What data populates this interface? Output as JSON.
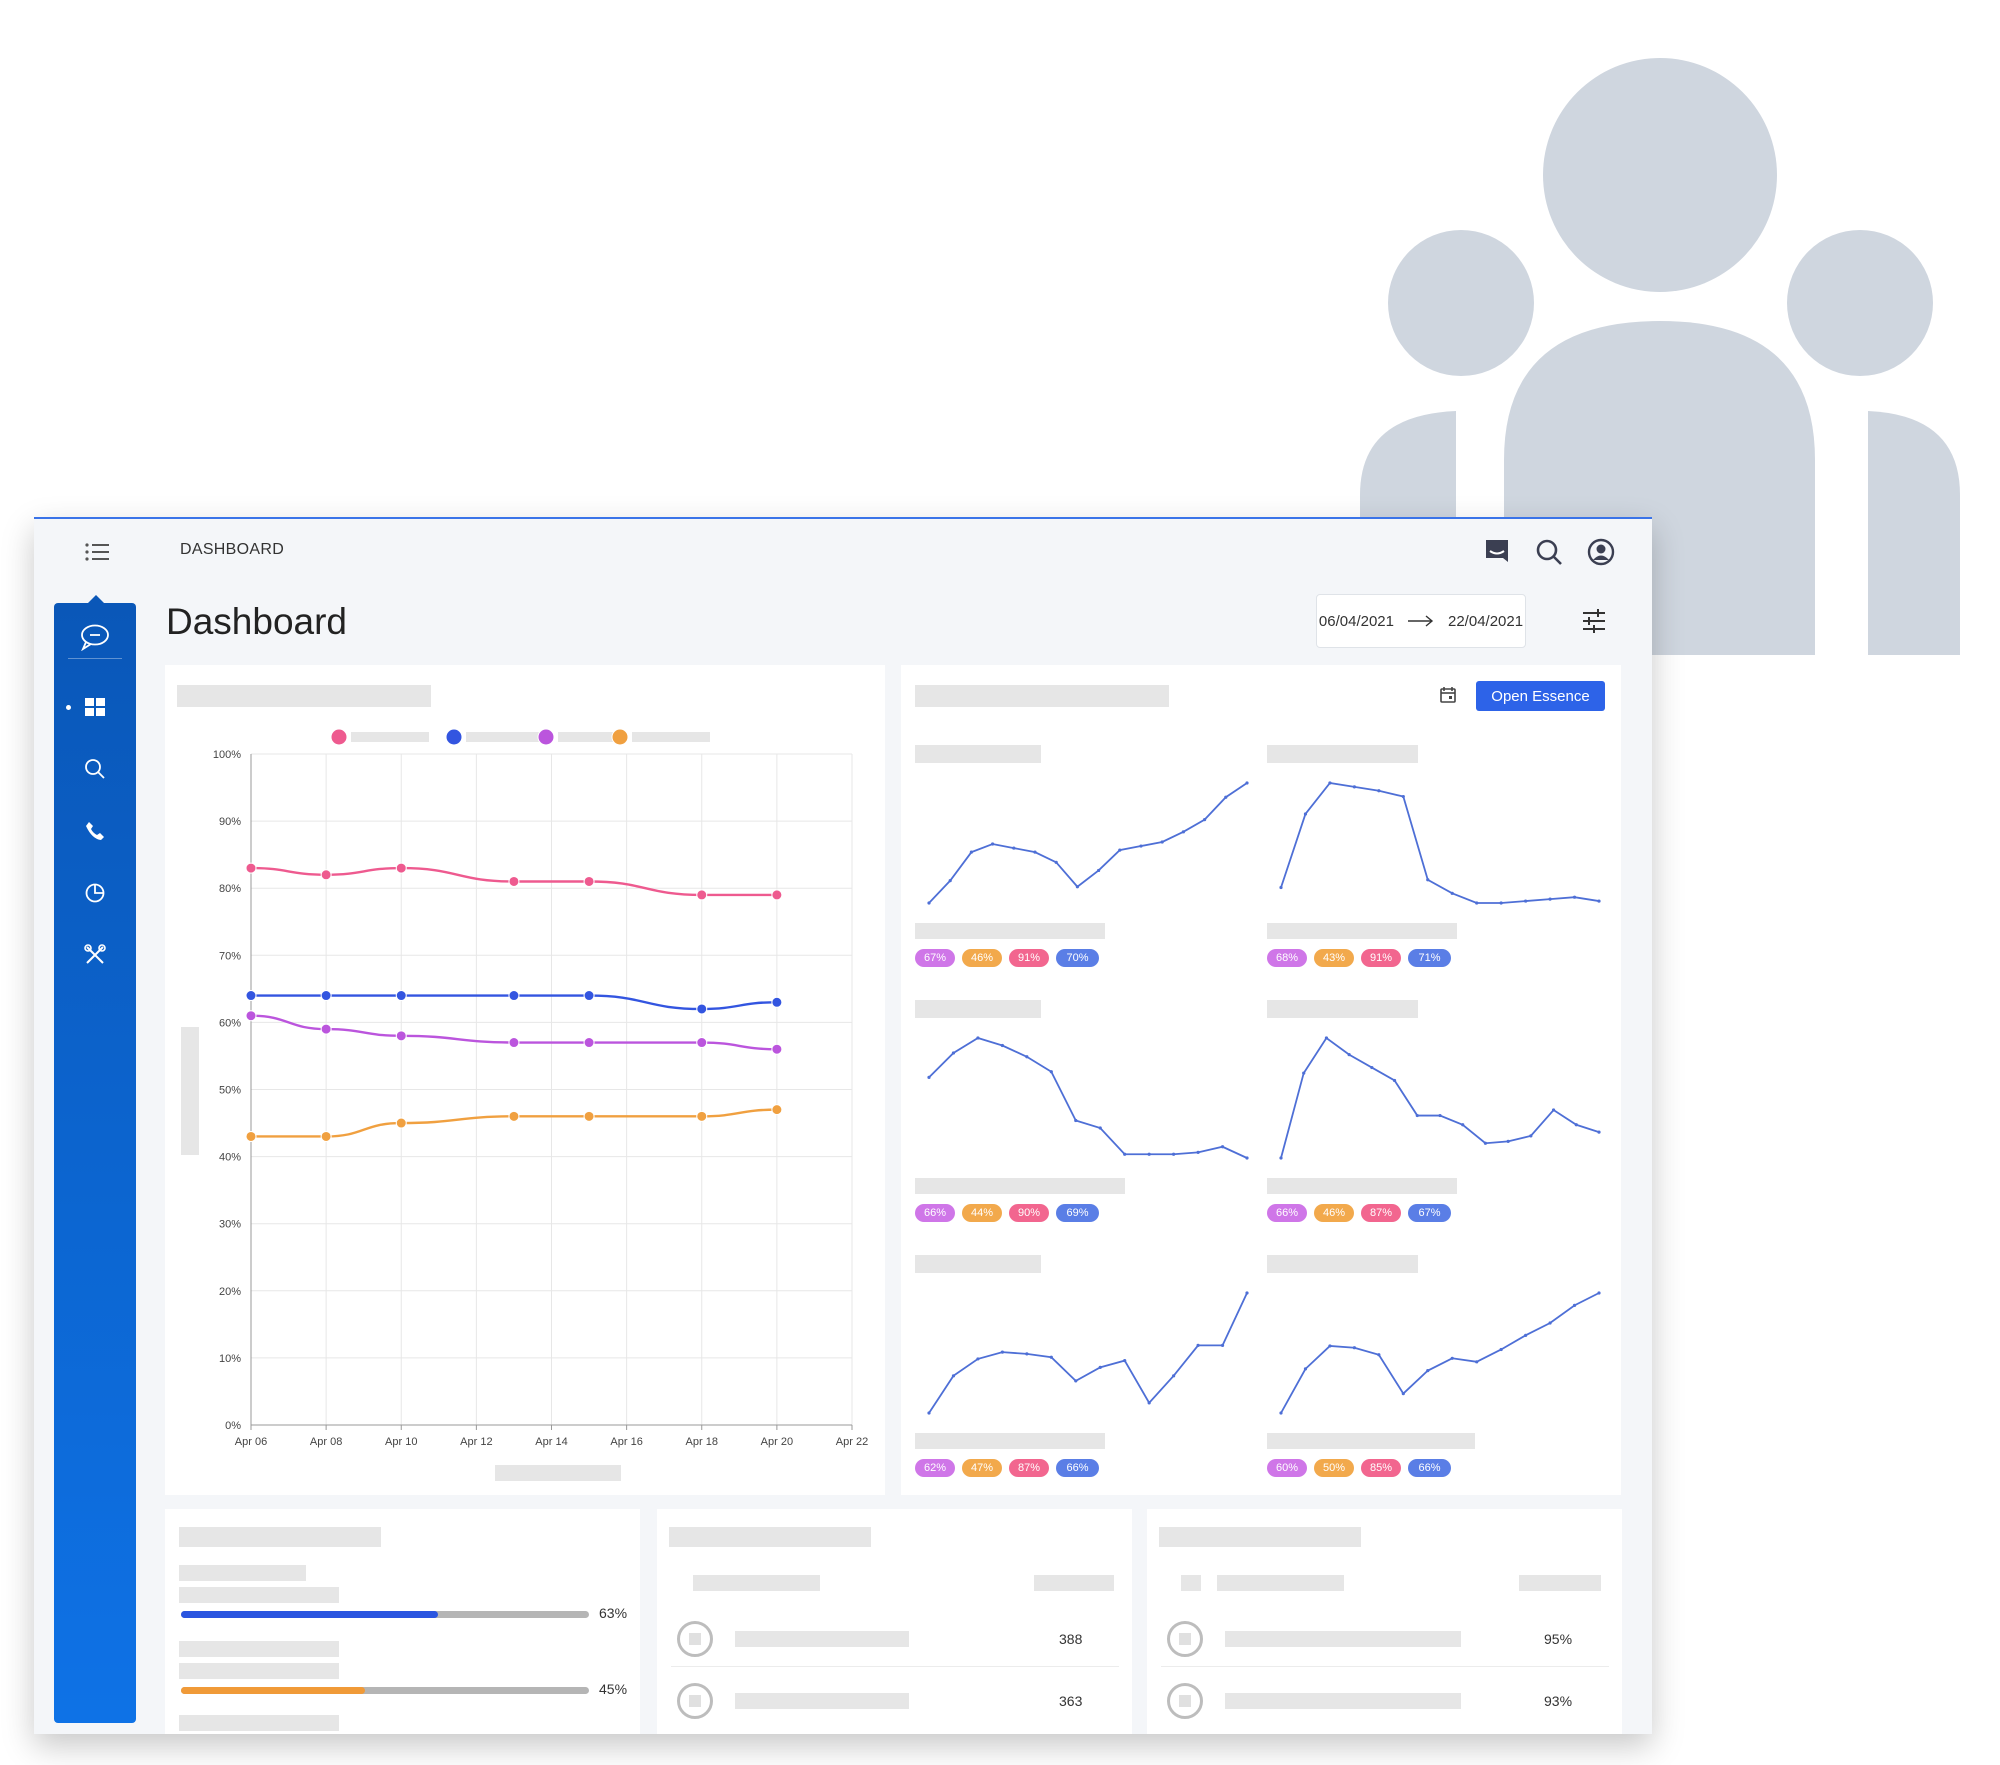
{
  "header": {
    "breadcrumb": "DASHBOARD",
    "page_title": "Dashboard",
    "date_from": "06/04/2021",
    "date_to": "22/04/2021"
  },
  "sidebar": {
    "items": [
      {
        "icon": "chat-icon"
      },
      {
        "icon": "dashboard-grid-icon",
        "active": true
      },
      {
        "icon": "search-icon"
      },
      {
        "icon": "phone-icon"
      },
      {
        "icon": "pie-chart-icon"
      },
      {
        "icon": "tools-icon"
      }
    ]
  },
  "top_icons": [
    "message-icon",
    "search-icon",
    "user-account-icon"
  ],
  "right_panel": {
    "button_label": "Open Essence",
    "sparklines": [
      {
        "badges": [
          "67%",
          "46%",
          "91%",
          "70%"
        ],
        "values": [
          3,
          14,
          28,
          32,
          30,
          28,
          23,
          11,
          19,
          29,
          31,
          33,
          38,
          44,
          55,
          62
        ]
      },
      {
        "badges": [
          "68%",
          "43%",
          "91%",
          "71%"
        ],
        "values": [
          8,
          46,
          62,
          60,
          58,
          55,
          12,
          5,
          0,
          0,
          1,
          2,
          3,
          1
        ]
      },
      {
        "badges": [
          "66%",
          "44%",
          "90%",
          "69%"
        ],
        "values": [
          45,
          58,
          66,
          62,
          56,
          48,
          22,
          18,
          4,
          4,
          4,
          5,
          8,
          2
        ]
      },
      {
        "badges": [
          "66%",
          "46%",
          "87%",
          "67%"
        ],
        "values": [
          2,
          48,
          67,
          58,
          51,
          44,
          25,
          25,
          20,
          10,
          11,
          14,
          28,
          20,
          16
        ]
      },
      {
        "badges": [
          "62%",
          "47%",
          "87%",
          "66%"
        ],
        "values": [
          4,
          26,
          36,
          40,
          39,
          37,
          23,
          31,
          35,
          10,
          26,
          44,
          44,
          75
        ]
      },
      {
        "badges": [
          "60%",
          "50%",
          "85%",
          "66%"
        ],
        "values": [
          4,
          29,
          42,
          41,
          37,
          15,
          28,
          35,
          33,
          40,
          48,
          55,
          65,
          72
        ]
      }
    ],
    "badge_colors": [
      "#cf76e8",
      "#f2a94c",
      "#f2668f",
      "#5a7ee6"
    ]
  },
  "progress_panel": {
    "bars": [
      {
        "value": 63,
        "label": "63%",
        "color": "#2a55e0"
      },
      {
        "value": 45,
        "label": "45%",
        "color": "#f09a38"
      }
    ]
  },
  "list_panel_a": {
    "rows": [
      {
        "value": "388"
      },
      {
        "value": "363"
      }
    ]
  },
  "list_panel_b": {
    "rows": [
      {
        "value": "95%"
      },
      {
        "value": "93%"
      }
    ]
  },
  "chart_data": {
    "type": "line",
    "x": [
      "Apr 06",
      "Apr 08",
      "Apr 10",
      "Apr 12",
      "Apr 14",
      "Apr 16",
      "Apr 18",
      "Apr 20",
      "Apr 22"
    ],
    "y_ticks": [
      "0%",
      "10%",
      "20%",
      "30%",
      "40%",
      "50%",
      "60%",
      "70%",
      "80%",
      "90%",
      "100%"
    ],
    "ylim": [
      0,
      100
    ],
    "grid": true,
    "legend": "top",
    "series": [
      {
        "color": "#ee5a8f",
        "points": [
          [
            0,
            83
          ],
          [
            2,
            82
          ],
          [
            4,
            83
          ],
          [
            7,
            81
          ],
          [
            9,
            81
          ],
          [
            12,
            79
          ],
          [
            14,
            79
          ]
        ]
      },
      {
        "color": "#3355e0",
        "points": [
          [
            0,
            64
          ],
          [
            2,
            64
          ],
          [
            4,
            64
          ],
          [
            7,
            64
          ],
          [
            9,
            64
          ],
          [
            12,
            62
          ],
          [
            14,
            63
          ]
        ]
      },
      {
        "color": "#bb55dd",
        "points": [
          [
            0,
            61
          ],
          [
            2,
            59
          ],
          [
            4,
            58
          ],
          [
            7,
            57
          ],
          [
            9,
            57
          ],
          [
            12,
            57
          ],
          [
            14,
            56
          ]
        ]
      },
      {
        "color": "#f0a040",
        "points": [
          [
            0,
            43
          ],
          [
            2,
            43
          ],
          [
            4,
            45
          ],
          [
            7,
            46
          ],
          [
            9,
            46
          ],
          [
            12,
            46
          ],
          [
            14,
            47
          ]
        ]
      }
    ]
  }
}
